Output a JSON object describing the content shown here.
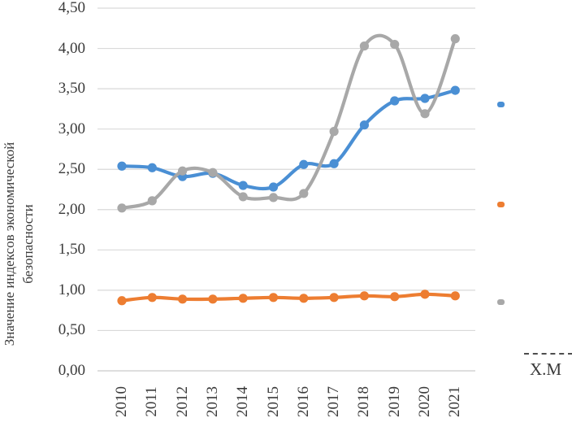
{
  "chart": {
    "ylabel": "Значение индексов экономической безопасности",
    "ylabel_lines": [
      "Значение индексов экономической",
      "безопасности"
    ],
    "legend_partial_label": "Х.М"
  },
  "chart_data": {
    "type": "line",
    "smooth": true,
    "title": "",
    "xlabel": "",
    "ylabel": "Значение индексов экономической безопасности",
    "categories": [
      "2010",
      "2011",
      "2012",
      "2013",
      "2014",
      "2015",
      "2016",
      "2017",
      "2018",
      "2019",
      "2020",
      "2021"
    ],
    "series": [
      {
        "key": "series-blue",
        "color": "#4A8FD4",
        "values": [
          2.54,
          2.52,
          2.41,
          2.45,
          2.3,
          2.28,
          2.56,
          2.57,
          3.05,
          3.35,
          3.38,
          3.48
        ]
      },
      {
        "key": "series-orange",
        "color": "#ED7D31",
        "values": [
          0.87,
          0.91,
          0.89,
          0.89,
          0.9,
          0.91,
          0.9,
          0.91,
          0.93,
          0.92,
          0.95,
          0.93
        ]
      },
      {
        "key": "series-gray",
        "color": "#A8A8A8",
        "values": [
          2.02,
          2.11,
          2.48,
          2.46,
          2.16,
          2.15,
          2.2,
          2.97,
          4.03,
          4.05,
          3.19,
          4.12
        ]
      }
    ],
    "y_ticks": [
      "0,00",
      "0,50",
      "1,00",
      "1,50",
      "2,00",
      "2,50",
      "3,00",
      "3,50",
      "4,00",
      "4,50"
    ],
    "ylim": [
      0,
      4.5
    ],
    "grid": true,
    "gridline_color": "#d9d9d9",
    "legend_position": "right-cropped",
    "legend_partial_item": {
      "style": "dashed",
      "label": "Х.М"
    }
  }
}
